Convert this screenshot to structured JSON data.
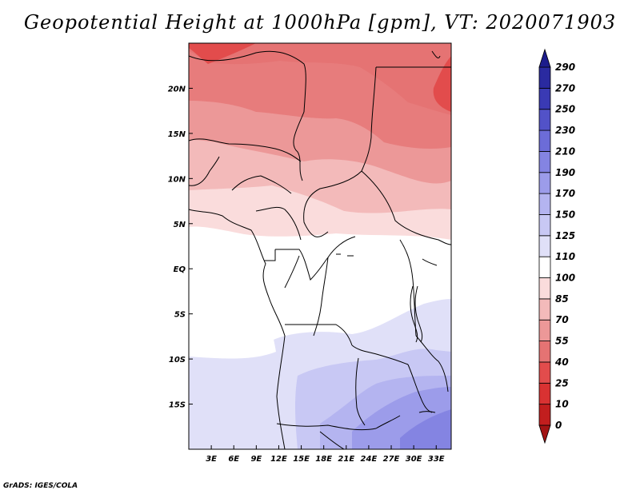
{
  "title": "Geopotential Height at 1000hPa [gpm], VT: 2020071903",
  "credit": "GrADS: IGES/COLA",
  "map": {
    "lon_range": [
      0,
      35
    ],
    "lat_range": [
      -20,
      25
    ],
    "lon_ticks": [
      "3E",
      "6E",
      "9E",
      "12E",
      "15E",
      "18E",
      "21E",
      "24E",
      "27E",
      "30E",
      "33E"
    ],
    "lon_tick_values": [
      3,
      6,
      9,
      12,
      15,
      18,
      21,
      24,
      27,
      30,
      33
    ],
    "lat_ticks": [
      "20N",
      "15N",
      "10N",
      "5N",
      "EQ",
      "5S",
      "10S",
      "15S"
    ],
    "lat_tick_values": [
      20,
      15,
      10,
      5,
      0,
      -5,
      -10,
      -15
    ]
  },
  "colorbar": {
    "levels": [
      "0",
      "10",
      "25",
      "40",
      "55",
      "70",
      "85",
      "100",
      "110",
      "125",
      "150",
      "170",
      "190",
      "210",
      "230",
      "250",
      "270",
      "290"
    ],
    "colors": [
      "#a21414",
      "#c21e1e",
      "#d93232",
      "#e24c4c",
      "#e57373",
      "#ec9898",
      "#f3baba",
      "#fadcdc",
      "#ffffff",
      "#e0e0f8",
      "#c8c8f4",
      "#b4b4f0",
      "#9c9cea",
      "#8484e2",
      "#6c6cd8",
      "#5252c8",
      "#3a3ab4",
      "#2a2aa0",
      "#1c1c8c"
    ]
  }
}
